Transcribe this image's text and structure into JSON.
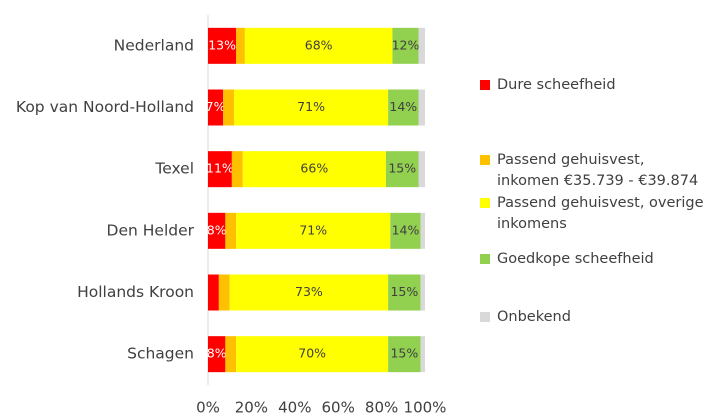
{
  "chart_data": {
    "type": "stacked-barh",
    "categories": [
      "Nederland",
      "Kop van Noord-Holland",
      "Texel",
      "Den Helder",
      "Hollands Kroon",
      "Schagen"
    ],
    "series": [
      {
        "name": "Dure scheefheid",
        "color": "#ff0000",
        "values": [
          13,
          7,
          11,
          8,
          5,
          8
        ],
        "value_labels": [
          "13%",
          "7%",
          "11%",
          "8%",
          null,
          "8%"
        ]
      },
      {
        "name": "Passend gehuisvest, inkomen €35.739 - €39.874",
        "color": "#ffc000",
        "values": [
          4,
          5,
          5,
          5,
          5,
          5
        ]
      },
      {
        "name": "Passend gehuisvest, overige inkomens",
        "color": "#ffff00",
        "values": [
          68,
          71,
          66,
          71,
          73,
          70
        ],
        "value_labels": [
          "68%",
          "71%",
          "66%",
          "71%",
          "73%",
          "70%"
        ]
      },
      {
        "name": "Goedkope scheefheid",
        "color": "#92d050",
        "values": [
          12,
          14,
          15,
          14,
          15,
          15
        ],
        "value_labels": [
          "12%",
          "14%",
          "15%",
          "14%",
          "15%",
          "15%"
        ]
      },
      {
        "name": "Onbekend",
        "color": "#d9d9d9",
        "values": [
          3,
          3,
          3,
          2,
          2,
          2
        ]
      }
    ],
    "xlim": [
      0,
      100
    ],
    "xticks": [
      {
        "value": 0,
        "label": "0%"
      },
      {
        "value": 20,
        "label": "20%"
      },
      {
        "value": 40,
        "label": "40%"
      },
      {
        "value": 60,
        "label": "60%"
      },
      {
        "value": 80,
        "label": "80%"
      },
      {
        "value": 100,
        "label": "100%"
      }
    ]
  }
}
